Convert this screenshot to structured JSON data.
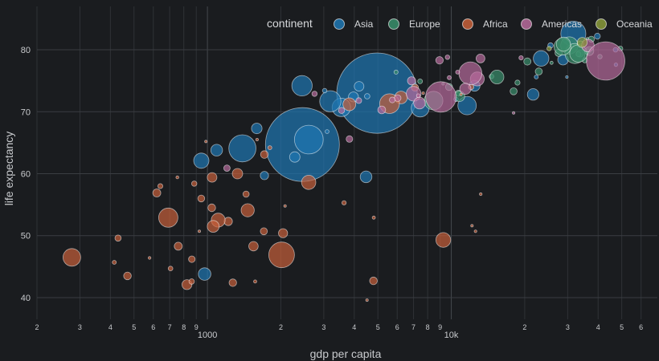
{
  "chart_data": {
    "type": "scatter",
    "title": "",
    "xlabel": "gdp per capita",
    "ylabel": "life expectancy",
    "x_scale": "log",
    "xlim": [
      200,
      70000
    ],
    "ylim": [
      36.5,
      87
    ],
    "grid": true,
    "x_major_ticks": [
      {
        "value": 1000,
        "label": "1000"
      },
      {
        "value": 10000,
        "label": "10k"
      }
    ],
    "x_minor_ticks": [
      {
        "value": 200,
        "label": "2"
      },
      {
        "value": 300,
        "label": "3"
      },
      {
        "value": 400,
        "label": "4"
      },
      {
        "value": 500,
        "label": "5"
      },
      {
        "value": 600,
        "label": "6"
      },
      {
        "value": 700,
        "label": "7"
      },
      {
        "value": 800,
        "label": "8"
      },
      {
        "value": 900,
        "label": "9"
      },
      {
        "value": 2000,
        "label": "2"
      },
      {
        "value": 3000,
        "label": "3"
      },
      {
        "value": 4000,
        "label": "4"
      },
      {
        "value": 5000,
        "label": "5"
      },
      {
        "value": 6000,
        "label": "6"
      },
      {
        "value": 7000,
        "label": "7"
      },
      {
        "value": 8000,
        "label": "8"
      },
      {
        "value": 9000,
        "label": "9"
      },
      {
        "value": 20000,
        "label": "2"
      },
      {
        "value": 30000,
        "label": "3"
      },
      {
        "value": 40000,
        "label": "4"
      },
      {
        "value": 50000,
        "label": "5"
      },
      {
        "value": 60000,
        "label": "6"
      }
    ],
    "y_ticks": [
      40,
      50,
      60,
      70,
      80
    ],
    "legend": {
      "title": "continent",
      "placement": "top-right"
    },
    "series": [
      {
        "name": "Asia",
        "color": "#1f77b4",
        "points": [
          [
            974,
            43.8,
            32
          ],
          [
            29796,
            75.6,
            0.7
          ],
          [
            1391,
            64.1,
            150
          ],
          [
            1713,
            59.7,
            14
          ],
          [
            4959,
            73.0,
            1319
          ],
          [
            39725,
            82.2,
            7
          ],
          [
            2452,
            64.7,
            1110
          ],
          [
            3541,
            70.7,
            69
          ],
          [
            4471,
            59.5,
            28
          ],
          [
            25523,
            80.7,
            6
          ],
          [
            31656,
            82.6,
            127
          ],
          [
            4519,
            72.5,
            6
          ],
          [
            1593,
            67.3,
            23
          ],
          [
            23348,
            78.6,
            49
          ],
          [
            47307,
            77.6,
            2.5
          ],
          [
            10461,
            72.0,
            4
          ],
          [
            12452,
            74.2,
            24
          ],
          [
            3096,
            66.8,
            2.9
          ],
          [
            944,
            62.1,
            47
          ],
          [
            1091,
            63.8,
            28
          ],
          [
            22316,
            75.6,
            3.2
          ],
          [
            2606,
            65.5,
            169
          ],
          [
            3190,
            71.7,
            91
          ],
          [
            21655,
            72.8,
            27
          ],
          [
            47143,
            80.0,
            4.5
          ],
          [
            3970,
            72.4,
            20
          ],
          [
            4185,
            74.1,
            19
          ],
          [
            28718,
            78.4,
            23
          ],
          [
            7458,
            70.6,
            65
          ],
          [
            2442,
            74.2,
            85
          ],
          [
            3025,
            73.4,
            4
          ],
          [
            2281,
            62.7,
            22
          ],
          [
            11606,
            71.0,
            69
          ]
        ]
      },
      {
        "name": "Europe",
        "color": "#3a8f6c",
        "points": [
          [
            5937,
            76.4,
            3.6
          ],
          [
            36126,
            79.8,
            8.2
          ],
          [
            33693,
            79.4,
            10.4
          ],
          [
            7446,
            74.9,
            4.6
          ],
          [
            10681,
            73.0,
            7.3
          ],
          [
            14619,
            75.7,
            4.5
          ],
          [
            22833,
            76.5,
            10.2
          ],
          [
            35278,
            78.3,
            5.5
          ],
          [
            33207,
            79.3,
            5.2
          ],
          [
            30470,
            80.7,
            61
          ],
          [
            32170,
            79.4,
            82
          ],
          [
            27538,
            79.5,
            10.7
          ],
          [
            18009,
            73.3,
            10
          ],
          [
            36181,
            81.8,
            0.3
          ],
          [
            40676,
            78.9,
            4.1
          ],
          [
            28570,
            80.5,
            58
          ],
          [
            9254,
            74.5,
            0.7
          ],
          [
            36798,
            79.8,
            16.6
          ],
          [
            49357,
            80.2,
            4.6
          ],
          [
            15390,
            75.6,
            38.5
          ],
          [
            20510,
            78.1,
            10.6
          ],
          [
            10808,
            72.5,
            22.3
          ],
          [
            9787,
            74.0,
            10.2
          ],
          [
            18678,
            74.7,
            5.4
          ],
          [
            25768,
            77.9,
            2
          ],
          [
            28821,
            80.9,
            40.4
          ],
          [
            33860,
            80.9,
            9
          ],
          [
            37506,
            81.7,
            7.6
          ],
          [
            8458,
            71.8,
            71
          ],
          [
            33203,
            79.4,
            60.8
          ]
        ]
      },
      {
        "name": "Africa",
        "color": "#c8603a",
        "points": [
          [
            6223,
            72.3,
            33
          ],
          [
            4797,
            42.7,
            12
          ],
          [
            1441,
            56.7,
            8
          ],
          [
            12570,
            50.7,
            1.6
          ],
          [
            1217,
            52.3,
            14
          ],
          [
            430,
            49.6,
            8
          ],
          [
            2042,
            50.4,
            17
          ],
          [
            706,
            44.7,
            4.4
          ],
          [
            1704,
            50.7,
            10
          ],
          [
            986,
            65.2,
            0.7
          ],
          [
            278,
            46.5,
            64
          ],
          [
            3633,
            55.3,
            3.8
          ],
          [
            1545,
            48.3,
            18
          ],
          [
            2082,
            54.8,
            0.5
          ],
          [
            5581,
            71.3,
            80
          ],
          [
            12154,
            51.6,
            0.6
          ],
          [
            641,
            58.0,
            4.9
          ],
          [
            691,
            52.9,
            76
          ],
          [
            13206,
            56.7,
            1.5
          ],
          [
            753,
            59.4,
            1.7
          ],
          [
            1328,
            60.0,
            22
          ],
          [
            943,
            56.0,
            9.9
          ],
          [
            579,
            46.4,
            1.5
          ],
          [
            1463,
            54.1,
            35
          ],
          [
            1569,
            42.6,
            2
          ],
          [
            415,
            45.7,
            3.2
          ],
          [
            12057,
            74.0,
            6
          ],
          [
            1045,
            59.4,
            19
          ],
          [
            759,
            48.3,
            13
          ],
          [
            1042,
            54.5,
            12
          ],
          [
            1803,
            64.2,
            3.3
          ],
          [
            10957,
            72.8,
            1.2
          ],
          [
            3820,
            71.2,
            33.8
          ],
          [
            824,
            42.1,
            20
          ],
          [
            4811,
            52.9,
            2
          ],
          [
            620,
            56.9,
            12.9
          ],
          [
            2014,
            46.9,
            135
          ],
          [
            7670,
            73.0,
            0.8
          ],
          [
            863,
            46.2,
            9
          ],
          [
            1598,
            65.5,
            0.2
          ],
          [
            1712,
            63.1,
            12
          ],
          [
            862,
            42.6,
            6
          ],
          [
            926,
            50.7,
            0.6
          ],
          [
            9270,
            49.3,
            44
          ],
          [
            2602,
            58.6,
            42
          ],
          [
            4513,
            39.6,
            1.1
          ],
          [
            1107,
            52.5,
            40
          ],
          [
            883,
            58.4,
            5.7
          ],
          [
            7093,
            73.9,
            10.3
          ],
          [
            1056,
            51.5,
            29
          ],
          [
            1271,
            42.4,
            11.7
          ],
          [
            470,
            43.5,
            12.3
          ]
        ]
      },
      {
        "name": "Americas",
        "color": "#b86b9c",
        "points": [
          [
            12779,
            75.3,
            40
          ],
          [
            3822,
            65.6,
            9
          ],
          [
            9066,
            72.4,
            190
          ],
          [
            36319,
            80.7,
            33
          ],
          [
            13172,
            78.6,
            16
          ],
          [
            7007,
            72.9,
            44
          ],
          [
            9645,
            78.8,
            4.1
          ],
          [
            8948,
            78.3,
            11.4
          ],
          [
            6025,
            72.2,
            9.3
          ],
          [
            6873,
            75.0,
            13.8
          ],
          [
            5728,
            71.9,
            6.9
          ],
          [
            5186,
            70.3,
            12.6
          ],
          [
            1202,
            60.9,
            8.5
          ],
          [
            3548,
            70.2,
            7.5
          ],
          [
            7321,
            72.6,
            2.8
          ],
          [
            11978,
            76.2,
            108
          ],
          [
            2749,
            72.9,
            5.7
          ],
          [
            9809,
            75.5,
            3.2
          ],
          [
            4173,
            71.8,
            6.7
          ],
          [
            7409,
            71.4,
            28
          ],
          [
            19329,
            78.7,
            3.9
          ],
          [
            18009,
            69.8,
            1
          ],
          [
            42952,
            78.2,
            301
          ],
          [
            10611,
            76.4,
            3.4
          ],
          [
            11416,
            73.7,
            26
          ]
        ]
      },
      {
        "name": "Oceania",
        "color": "#8a9a3a",
        "points": [
          [
            34435,
            81.2,
            20.4
          ],
          [
            25185,
            80.2,
            4.1
          ]
        ]
      }
    ]
  }
}
